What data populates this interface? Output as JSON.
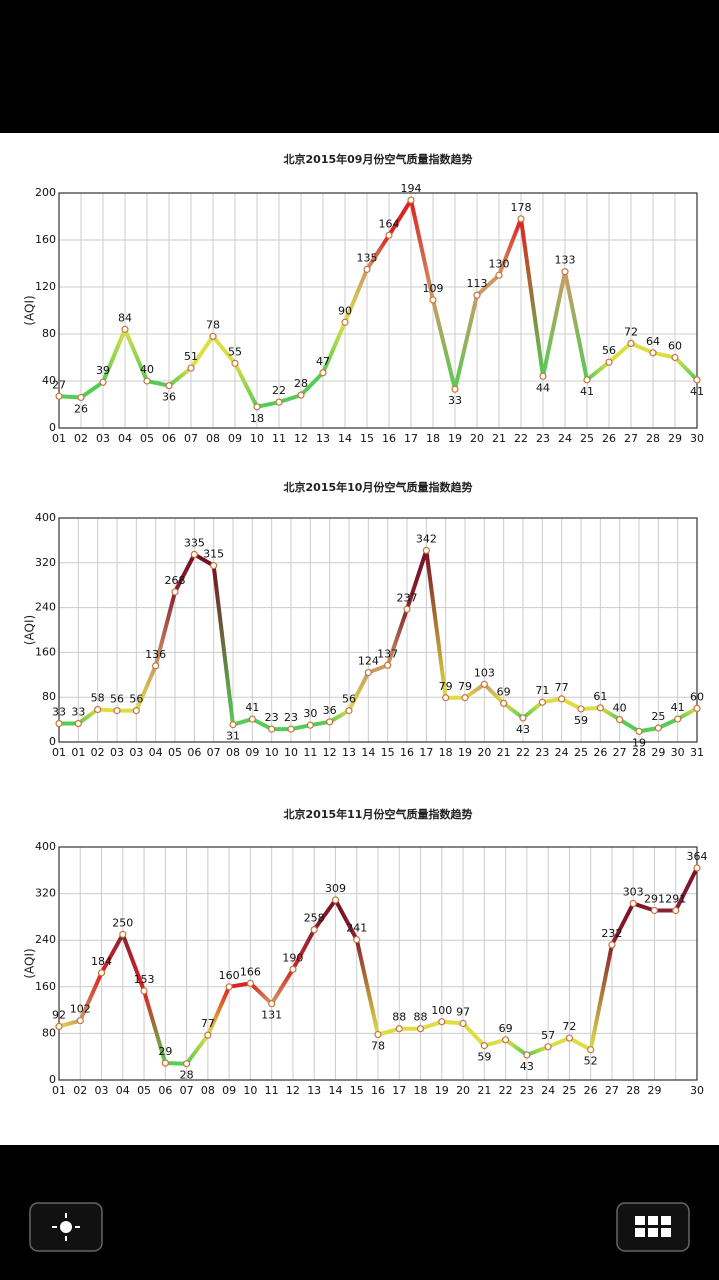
{
  "chart_data": [
    {
      "type": "line",
      "title": "北京2015年09月份空气质量指数趋势",
      "y_label": "(AQI)",
      "categories": [
        "01",
        "02",
        "03",
        "04",
        "05",
        "06",
        "07",
        "08",
        "09",
        "10",
        "11",
        "12",
        "13",
        "14",
        "15",
        "16",
        "17",
        "18",
        "19",
        "20",
        "21",
        "22",
        "23",
        "24",
        "25",
        "26",
        "27",
        "28",
        "29",
        "30"
      ],
      "series": [
        {
          "values": [
            27,
            26,
            39,
            84,
            40,
            36,
            51,
            78,
            55,
            18,
            22,
            28,
            47,
            90,
            135,
            164,
            194,
            109,
            33,
            113,
            130,
            178,
            44,
            133,
            41,
            56,
            72,
            64,
            60,
            41
          ],
          "point_colors": [
            "#5c5",
            "#5c5",
            "#5c5",
            "#dd4",
            "#5c5",
            "#5c5",
            "#dd4",
            "#dd4",
            "#dd4",
            "#5c5",
            "#5c5",
            "#5c5",
            "#5c5",
            "#dd4",
            "#c96",
            "#d22",
            "#d22",
            "#c96",
            "#5c5",
            "#c96",
            "#c96",
            "#d22",
            "#5c5",
            "#c96",
            "#5c5",
            "#dd4",
            "#dd4",
            "#dd4",
            "#dd4",
            "#5c5"
          ]
        }
      ],
      "ylim": [
        0,
        200
      ],
      "yticks": [
        0,
        40,
        80,
        120,
        160,
        200
      ],
      "grid": true,
      "marker_color": "#c8743a"
    },
    {
      "type": "line",
      "title": "北京2015年10月份空气质量指数趋势",
      "y_label": "(AQI)",
      "categories": [
        "01",
        "01",
        "02",
        "03",
        "03",
        "04",
        "05",
        "06",
        "07",
        "08",
        "09",
        "10",
        "10",
        "11",
        "12",
        "13",
        "14",
        "15",
        "16",
        "17",
        "18",
        "19",
        "20",
        "21",
        "22",
        "23",
        "24",
        "25",
        "26",
        "27",
        "28",
        "29",
        "30",
        "31"
      ],
      "series": [
        {
          "values": [
            33,
            33,
            58,
            56,
            56,
            136,
            268,
            335,
            315,
            31,
            41,
            23,
            23,
            30,
            36,
            56,
            124,
            137,
            237,
            342,
            79,
            79,
            103,
            69,
            43,
            71,
            77,
            59,
            61,
            40,
            19,
            25,
            41,
            60
          ],
          "point_colors": [
            "#5c5",
            "#5c5",
            "#dd4",
            "#dd4",
            "#dd4",
            "#c96",
            "#823",
            "#712",
            "#712",
            "#5c5",
            "#5c5",
            "#5c5",
            "#5c5",
            "#5c5",
            "#5c5",
            "#dd4",
            "#c96",
            "#c96",
            "#823",
            "#712",
            "#dd4",
            "#dd4",
            "#c96",
            "#dd4",
            "#5c5",
            "#dd4",
            "#dd4",
            "#dd4",
            "#dd4",
            "#5c5",
            "#5c5",
            "#5c5",
            "#5c5",
            "#dd4"
          ]
        }
      ],
      "ylim": [
        0,
        400
      ],
      "yticks": [
        0,
        80,
        160,
        240,
        320,
        400
      ],
      "grid": true,
      "marker_color": "#c8743a"
    },
    {
      "type": "line",
      "title": "北京2015年11月份空气质量指数趋势",
      "y_label": "(AQI)",
      "categories": [
        "01",
        "02",
        "03",
        "04",
        "05",
        "06",
        "07",
        "08",
        "09",
        "10",
        "11",
        "12",
        "13",
        "14",
        "15",
        "16",
        "17",
        "18",
        "19",
        "20",
        "21",
        "22",
        "23",
        "24",
        "25",
        "26",
        "27",
        "28",
        "29",
        null,
        "30"
      ],
      "series": [
        {
          "values": [
            92,
            102,
            184,
            250,
            153,
            29,
            28,
            77,
            160,
            166,
            131,
            190,
            258,
            309,
            241,
            78,
            88,
            88,
            100,
            97,
            59,
            69,
            43,
            57,
            72,
            52,
            232,
            303,
            291,
            291,
            364
          ],
          "point_colors": [
            "#dd4",
            "#c96",
            "#d22",
            "#823",
            "#d22",
            "#5c5",
            "#5c5",
            "#dd4",
            "#d22",
            "#d22",
            "#c96",
            "#d22",
            "#823",
            "#712",
            "#823",
            "#dd4",
            "#dd4",
            "#dd4",
            "#dd4",
            "#dd4",
            "#dd4",
            "#dd4",
            "#5c5",
            "#dd4",
            "#dd4",
            "#dd4",
            "#823",
            "#712",
            "#823",
            "#823",
            "#712"
          ]
        }
      ],
      "ylim": [
        0,
        400
      ],
      "yticks": [
        0,
        80,
        160,
        240,
        320,
        400
      ],
      "grid": true,
      "marker_color": "#c8743a"
    }
  ]
}
